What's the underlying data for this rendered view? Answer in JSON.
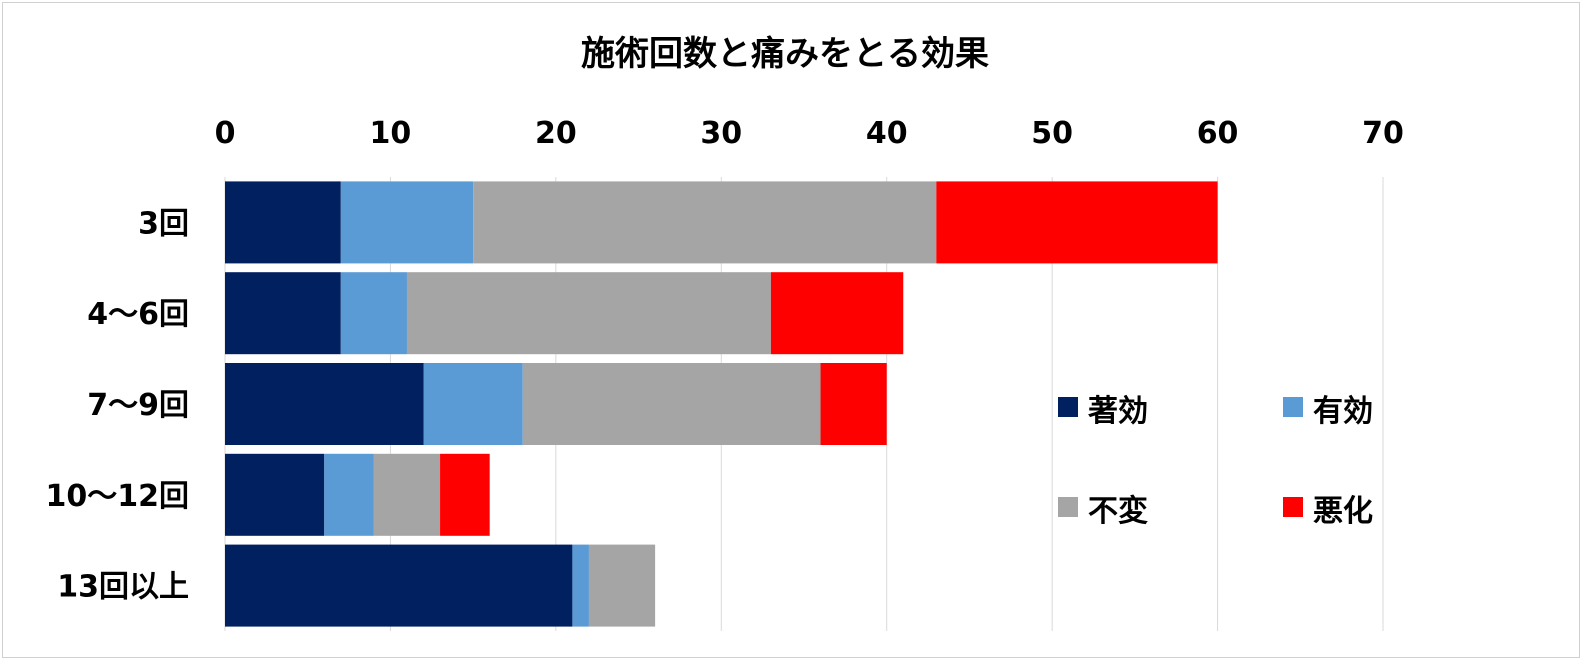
{
  "chart_data": {
    "type": "bar",
    "orientation": "horizontal",
    "stacked": true,
    "title": "施術回数と痛みをとる効果",
    "xlabel": "",
    "ylabel": "",
    "xlim": [
      0,
      70
    ],
    "x_ticks": [
      "0",
      "10",
      "20",
      "30",
      "40",
      "50",
      "60",
      "70"
    ],
    "x_axis_position": "top",
    "grid": true,
    "legend_position": "right",
    "categories": [
      "3回",
      "4〜6回",
      "7〜9回",
      "10〜12回",
      "13回以上"
    ],
    "series": [
      {
        "name": "著効",
        "color": "#002060",
        "values": [
          7,
          7,
          12,
          6,
          21
        ]
      },
      {
        "name": "有効",
        "color": "#5B9BD5",
        "values": [
          8,
          4,
          6,
          3,
          1
        ]
      },
      {
        "name": "不変",
        "color": "#A5A5A5",
        "values": [
          28,
          22,
          18,
          4,
          4
        ]
      },
      {
        "name": "悪化",
        "color": "#FF0000",
        "values": [
          17,
          8,
          4,
          3,
          0
        ]
      }
    ]
  }
}
